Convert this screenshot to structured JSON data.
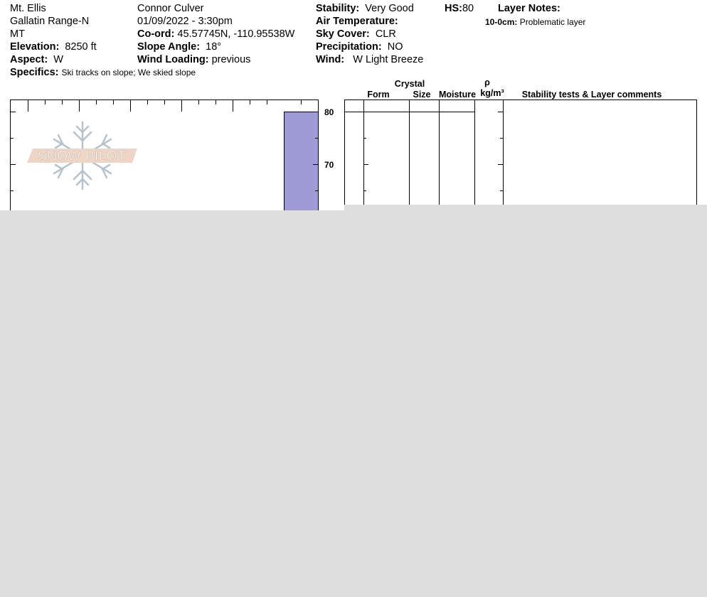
{
  "site": {
    "location": "Mt. Ellis",
    "range": "Gallatin Range-N",
    "state": "MT",
    "elevation_label": "Elevation:",
    "elevation": "8250 ft",
    "aspect_label": "Aspect:",
    "aspect": "W",
    "specifics_label": "Specifics:",
    "specifics": "Ski tracks on slope; We skied slope"
  },
  "observer": {
    "name": "Connor Culver",
    "datetime": "01/09/2022 - 3:30pm",
    "coord_label": "Co-ord:",
    "coord": "45.57745N, -110.95538W",
    "slope_label": "Slope Angle:",
    "slope": "18°",
    "wind_loading_label": "Wind Loading:",
    "wind_loading": "previous"
  },
  "conditions": {
    "stability_label": "Stability:",
    "stability": "Very Good",
    "air_temp_label": "Air Temperature:",
    "air_temp": "",
    "sky_label": "Sky Cover:",
    "sky": "CLR",
    "precip_label": "Precipitation:",
    "precip": "NO",
    "wind_label": "Wind:",
    "wind": "W Light Breeze"
  },
  "hs": {
    "label": "HS:",
    "value": "80"
  },
  "layer_notes": {
    "label": "Layer Notes:",
    "items": [
      {
        "range": "10-0cm:",
        "text": "Problematic layer"
      }
    ]
  },
  "logo": {
    "text": "SNOW PILOT"
  },
  "profile": {
    "depth_labels": [
      "80",
      "70"
    ],
    "snow_color": "#9e9bd6"
  },
  "columns": {
    "crystal": "Crystal",
    "form": "Form",
    "size": "Size",
    "moisture": "Moisture",
    "rho": "ρ",
    "density_unit": "kg/m³",
    "comments": "Stability tests & Layer comments"
  }
}
